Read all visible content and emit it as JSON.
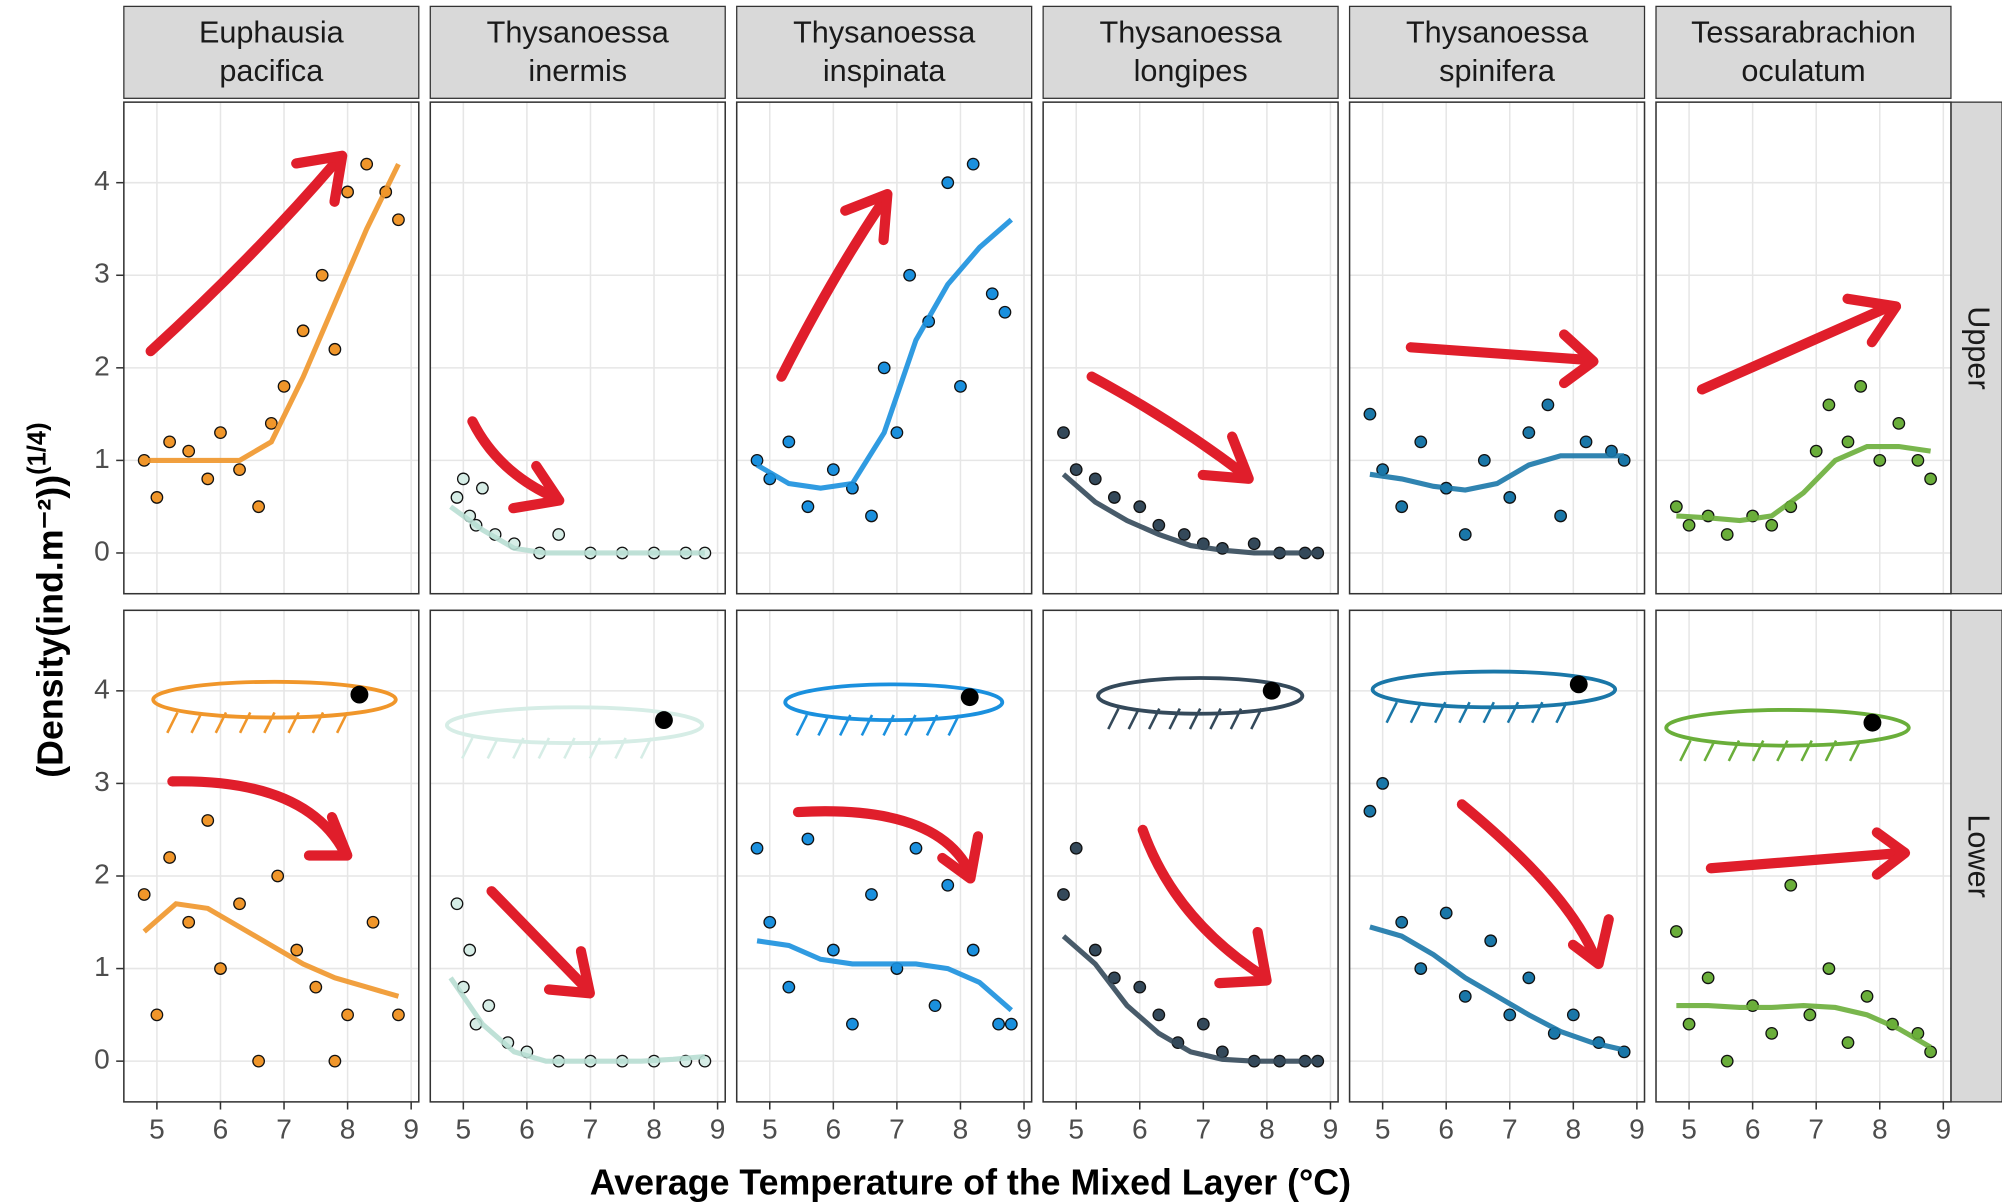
{
  "chart_data": {
    "type": "scatter",
    "x_label": "Average Temperature of the Mixed Layer (°C)",
    "y_label": "(Density(ind.m⁻²))",
    "y_label_exponent": "(1/4)",
    "xlim": [
      4.48,
      9.12
    ],
    "xticks": [
      5,
      6,
      7,
      8,
      9
    ],
    "ylim": [
      -0.44,
      4.87
    ],
    "yticks": [
      0,
      1,
      2,
      3,
      4
    ],
    "grid": true,
    "smooth_x": [
      4.8,
      5.3,
      5.8,
      6.3,
      6.8,
      7.3,
      7.8,
      8.3,
      8.8
    ],
    "species": [
      {
        "label": [
          "Euphausia",
          "pacifica"
        ],
        "color": "#f0962a"
      },
      {
        "label": [
          "Thysanoessa",
          "inermis"
        ],
        "color": "#d6ede6"
      },
      {
        "label": [
          "Thysanoessa",
          "inspinata"
        ],
        "color": "#1a90de"
      },
      {
        "label": [
          "Thysanoessa",
          "longipes"
        ],
        "color": "#34495a"
      },
      {
        "label": [
          "Thysanoessa",
          "spinifera"
        ],
        "color": "#1a77a8"
      },
      {
        "label": [
          "Tessarabrachion",
          "oculatum"
        ],
        "color": "#6aae3a"
      }
    ],
    "rows": [
      {
        "label": "Upper",
        "panels": [
          {
            "x": [
              4.8,
              5.0,
              5.2,
              5.5,
              5.8,
              6.0,
              6.3,
              6.6,
              6.8,
              7.0,
              7.3,
              7.6,
              7.8,
              8.0,
              8.3,
              8.6,
              8.8
            ],
            "values": [
              1.0,
              0.6,
              1.2,
              1.1,
              0.8,
              1.3,
              0.9,
              0.5,
              1.4,
              1.8,
              2.4,
              3.0,
              2.2,
              3.9,
              4.2,
              3.9,
              3.6
            ],
            "smooth_values": [
              1.0,
              1.0,
              1.0,
              1.0,
              1.2,
              1.9,
              2.7,
              3.5,
              4.2
            ]
          },
          {
            "x": [
              4.9,
              5.0,
              5.1,
              5.2,
              5.3,
              5.5,
              5.8,
              6.2,
              6.5,
              7.0,
              7.5,
              8.0,
              8.5,
              8.8
            ],
            "values": [
              0.6,
              0.8,
              0.4,
              0.3,
              0.7,
              0.2,
              0.1,
              0,
              0.2,
              0,
              0,
              0,
              0,
              0
            ],
            "smooth_values": [
              0.5,
              0.25,
              0.05,
              0,
              0,
              0,
              0,
              0,
              0
            ]
          },
          {
            "x": [
              4.8,
              5.0,
              5.3,
              5.6,
              6.0,
              6.3,
              6.6,
              6.8,
              7.0,
              7.2,
              7.5,
              7.8,
              8.0,
              8.2,
              8.5,
              8.7
            ],
            "values": [
              1.0,
              0.8,
              1.2,
              0.5,
              0.9,
              0.7,
              0.4,
              2.0,
              1.3,
              3.0,
              2.5,
              4.0,
              1.8,
              4.2,
              2.8,
              2.6
            ],
            "smooth_values": [
              0.95,
              0.75,
              0.7,
              0.75,
              1.3,
              2.3,
              2.9,
              3.3,
              3.6
            ]
          },
          {
            "x": [
              4.8,
              5.0,
              5.3,
              5.6,
              6.0,
              6.3,
              6.7,
              7.0,
              7.3,
              7.8,
              8.2,
              8.6,
              8.8
            ],
            "values": [
              1.3,
              0.9,
              0.8,
              0.6,
              0.5,
              0.3,
              0.2,
              0.1,
              0.05,
              0.1,
              0,
              0,
              0
            ],
            "smooth_values": [
              0.85,
              0.55,
              0.35,
              0.2,
              0.08,
              0.03,
              0,
              0,
              0
            ]
          },
          {
            "x": [
              4.8,
              5.0,
              5.3,
              5.6,
              6.0,
              6.3,
              6.6,
              7.0,
              7.3,
              7.6,
              7.8,
              8.2,
              8.6,
              8.8
            ],
            "values": [
              1.5,
              0.9,
              0.5,
              1.2,
              0.7,
              0.2,
              1.0,
              0.6,
              1.3,
              1.6,
              0.4,
              1.2,
              1.1,
              1.0
            ],
            "smooth_values": [
              0.85,
              0.8,
              0.72,
              0.68,
              0.75,
              0.95,
              1.05,
              1.05,
              1.05
            ]
          },
          {
            "x": [
              4.8,
              5.0,
              5.3,
              5.6,
              6.0,
              6.3,
              6.6,
              7.0,
              7.2,
              7.5,
              7.7,
              8.0,
              8.3,
              8.6,
              8.8
            ],
            "values": [
              0.5,
              0.3,
              0.4,
              0.2,
              0.4,
              0.3,
              0.5,
              1.1,
              1.6,
              1.2,
              1.8,
              1.0,
              1.4,
              1.0,
              0.8
            ],
            "smooth_values": [
              0.4,
              0.38,
              0.35,
              0.4,
              0.65,
              1.0,
              1.15,
              1.15,
              1.1
            ]
          }
        ]
      },
      {
        "label": "Lower",
        "panels": [
          {
            "x": [
              4.8,
              5.0,
              5.2,
              5.5,
              5.8,
              6.0,
              6.3,
              6.6,
              6.9,
              7.2,
              7.5,
              7.8,
              8.0,
              8.4,
              8.8
            ],
            "values": [
              1.8,
              0.5,
              2.2,
              1.5,
              2.6,
              1.0,
              1.7,
              0,
              2.0,
              1.2,
              0.8,
              0,
              0.5,
              1.5,
              0.5
            ],
            "smooth_values": [
              1.4,
              1.7,
              1.65,
              1.45,
              1.25,
              1.05,
              0.9,
              0.8,
              0.7
            ]
          },
          {
            "x": [
              4.9,
              5.0,
              5.1,
              5.2,
              5.4,
              5.7,
              6.0,
              6.5,
              7.0,
              7.5,
              8.0,
              8.5,
              8.8
            ],
            "values": [
              1.7,
              0.8,
              1.2,
              0.4,
              0.6,
              0.2,
              0.1,
              0,
              0,
              0,
              0,
              0,
              0
            ],
            "smooth_values": [
              0.9,
              0.4,
              0.1,
              0,
              0,
              0,
              0,
              0.02,
              0.05
            ]
          },
          {
            "x": [
              4.8,
              5.0,
              5.3,
              5.6,
              6.0,
              6.3,
              6.6,
              7.0,
              7.3,
              7.6,
              7.8,
              8.2,
              8.6,
              8.8
            ],
            "values": [
              2.3,
              1.5,
              0.8,
              2.4,
              1.2,
              0.4,
              1.8,
              1.0,
              2.3,
              0.6,
              1.9,
              1.2,
              0.4,
              0.4
            ],
            "smooth_values": [
              1.3,
              1.25,
              1.1,
              1.05,
              1.05,
              1.05,
              1.0,
              0.85,
              0.55
            ]
          },
          {
            "x": [
              4.8,
              5.0,
              5.3,
              5.6,
              6.0,
              6.3,
              6.6,
              7.0,
              7.3,
              7.8,
              8.2,
              8.6,
              8.8
            ],
            "values": [
              1.8,
              2.3,
              1.2,
              0.9,
              0.8,
              0.5,
              0.2,
              0.4,
              0.1,
              0,
              0,
              0,
              0
            ],
            "smooth_values": [
              1.35,
              1.05,
              0.6,
              0.3,
              0.1,
              0.02,
              0,
              0,
              0
            ]
          },
          {
            "x": [
              4.8,
              5.0,
              5.3,
              5.6,
              6.0,
              6.3,
              6.7,
              7.0,
              7.3,
              7.7,
              8.0,
              8.4,
              8.8
            ],
            "values": [
              2.7,
              3.0,
              1.5,
              1.0,
              1.6,
              0.7,
              1.3,
              0.5,
              0.9,
              0.3,
              0.5,
              0.2,
              0.1
            ],
            "smooth_values": [
              1.45,
              1.35,
              1.15,
              0.9,
              0.7,
              0.5,
              0.32,
              0.2,
              0.12
            ]
          },
          {
            "x": [
              4.8,
              5.0,
              5.3,
              5.6,
              6.0,
              6.3,
              6.6,
              6.9,
              7.2,
              7.5,
              7.8,
              8.2,
              8.6,
              8.8
            ],
            "values": [
              1.4,
              0.4,
              0.9,
              0,
              0.6,
              0.3,
              1.9,
              0.5,
              1.0,
              0.2,
              0.7,
              0.4,
              0.3,
              0.1
            ],
            "smooth_values": [
              0.6,
              0.6,
              0.58,
              0.58,
              0.6,
              0.58,
              0.5,
              0.35,
              0.15
            ]
          }
        ]
      }
    ]
  }
}
